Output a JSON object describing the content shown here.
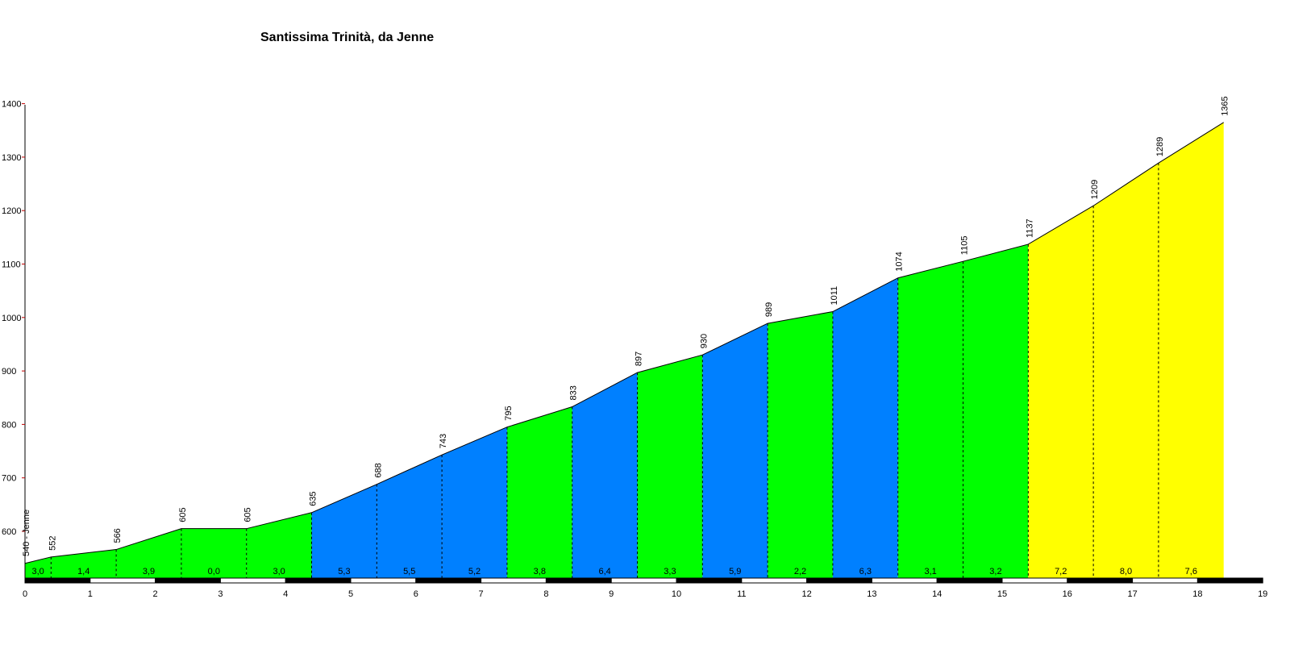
{
  "chart_data": {
    "type": "area",
    "title": "Santissima Trinità, da Jenne",
    "start_label": "540 - Jenne",
    "xlabel": "",
    "ylabel": "",
    "xlim": [
      0,
      19
    ],
    "ylim": [
      510,
      1400
    ],
    "x_ticks": [
      0,
      1,
      2,
      3,
      4,
      5,
      6,
      7,
      8,
      9,
      10,
      11,
      12,
      13,
      14,
      15,
      16,
      17,
      18,
      19
    ],
    "y_ticks": [
      600,
      700,
      800,
      900,
      1000,
      1100,
      1200,
      1300,
      1400
    ],
    "points": [
      {
        "x": 0,
        "elev": 540
      },
      {
        "x": 0.4,
        "elev": 552
      },
      {
        "x": 1.4,
        "elev": 566
      },
      {
        "x": 2.4,
        "elev": 605
      },
      {
        "x": 3.4,
        "elev": 605
      },
      {
        "x": 4.4,
        "elev": 635
      },
      {
        "x": 5.4,
        "elev": 688
      },
      {
        "x": 6.4,
        "elev": 743
      },
      {
        "x": 7.4,
        "elev": 795
      },
      {
        "x": 8.4,
        "elev": 833
      },
      {
        "x": 9.4,
        "elev": 897
      },
      {
        "x": 10.4,
        "elev": 930
      },
      {
        "x": 11.4,
        "elev": 989
      },
      {
        "x": 12.4,
        "elev": 1011
      },
      {
        "x": 13.4,
        "elev": 1074
      },
      {
        "x": 14.4,
        "elev": 1105
      },
      {
        "x": 15.4,
        "elev": 1137
      },
      {
        "x": 16.4,
        "elev": 1209
      },
      {
        "x": 17.4,
        "elev": 1289
      },
      {
        "x": 18.4,
        "elev": 1365
      }
    ],
    "segments": [
      {
        "from": 0,
        "to": 0.4,
        "gradient": "3,0",
        "color": "#00ff00"
      },
      {
        "from": 0.4,
        "to": 1.4,
        "gradient": "1,4",
        "color": "#00ff00"
      },
      {
        "from": 1.4,
        "to": 2.4,
        "gradient": "3,9",
        "color": "#00ff00"
      },
      {
        "from": 2.4,
        "to": 3.4,
        "gradient": "0,0",
        "color": "#00ff00"
      },
      {
        "from": 3.4,
        "to": 4.4,
        "gradient": "3,0",
        "color": "#00ff00"
      },
      {
        "from": 4.4,
        "to": 5.4,
        "gradient": "5,3",
        "color": "#0080ff"
      },
      {
        "from": 5.4,
        "to": 6.4,
        "gradient": "5,5",
        "color": "#0080ff"
      },
      {
        "from": 6.4,
        "to": 7.4,
        "gradient": "5,2",
        "color": "#0080ff"
      },
      {
        "from": 7.4,
        "to": 8.4,
        "gradient": "3,8",
        "color": "#00ff00"
      },
      {
        "from": 8.4,
        "to": 9.4,
        "gradient": "6,4",
        "color": "#0080ff"
      },
      {
        "from": 9.4,
        "to": 10.4,
        "gradient": "3,3",
        "color": "#00ff00"
      },
      {
        "from": 10.4,
        "to": 11.4,
        "gradient": "5,9",
        "color": "#0080ff"
      },
      {
        "from": 11.4,
        "to": 12.4,
        "gradient": "2,2",
        "color": "#00ff00"
      },
      {
        "from": 12.4,
        "to": 13.4,
        "gradient": "6,3",
        "color": "#0080ff"
      },
      {
        "from": 13.4,
        "to": 14.4,
        "gradient": "3,1",
        "color": "#00ff00"
      },
      {
        "from": 14.4,
        "to": 15.4,
        "gradient": "3,2",
        "color": "#00ff00"
      },
      {
        "from": 15.4,
        "to": 16.4,
        "gradient": "7,2",
        "color": "#ffff00"
      },
      {
        "from": 16.4,
        "to": 17.4,
        "gradient": "8,0",
        "color": "#ffff00"
      },
      {
        "from": 17.4,
        "to": 18.4,
        "gradient": "7,6",
        "color": "#ffff00"
      }
    ],
    "grid": false,
    "legend": "none"
  }
}
